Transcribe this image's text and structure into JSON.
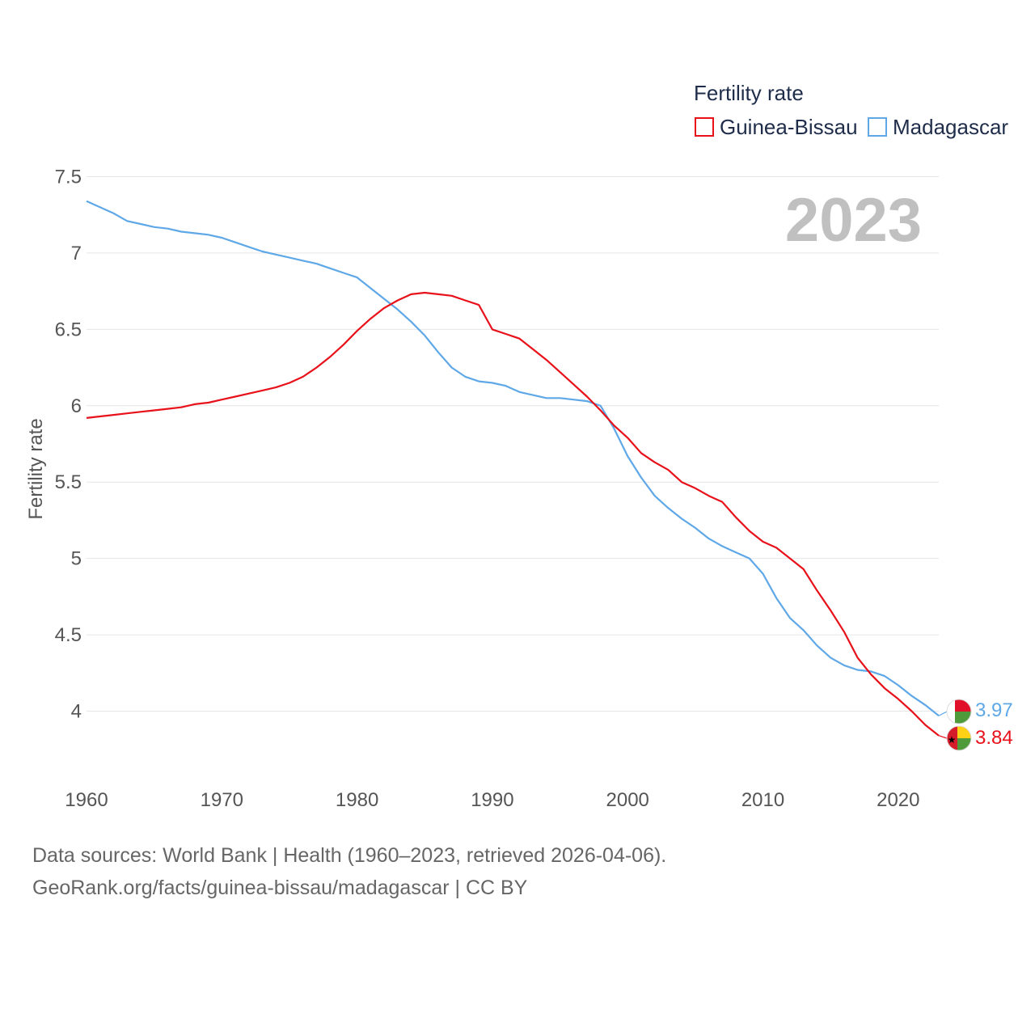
{
  "chart_data": {
    "type": "line",
    "title": "Fertility rate",
    "ylabel": "Fertility rate",
    "xlabel": "",
    "year_label": "2023",
    "xlim": [
      1960,
      2023
    ],
    "ylim": [
      3.7,
      7.5
    ],
    "x_ticks": [
      "1960",
      "1970",
      "1980",
      "1990",
      "2000",
      "2010",
      "2020"
    ],
    "y_ticks": [
      "4",
      "4.5",
      "5",
      "5.5",
      "6",
      "6.5",
      "7",
      "7.5"
    ],
    "legend_position": "top-right",
    "x": [
      1960,
      1961,
      1962,
      1963,
      1964,
      1965,
      1966,
      1967,
      1968,
      1969,
      1970,
      1971,
      1972,
      1973,
      1974,
      1975,
      1976,
      1977,
      1978,
      1979,
      1980,
      1981,
      1982,
      1983,
      1984,
      1985,
      1986,
      1987,
      1988,
      1989,
      1990,
      1991,
      1992,
      1993,
      1994,
      1995,
      1996,
      1997,
      1998,
      1999,
      2000,
      2001,
      2002,
      2003,
      2004,
      2005,
      2006,
      2007,
      2008,
      2009,
      2010,
      2011,
      2012,
      2013,
      2014,
      2015,
      2016,
      2017,
      2018,
      2019,
      2020,
      2021,
      2022,
      2023
    ],
    "series": [
      {
        "name": "Guinea-Bissau",
        "color": "#e8111a",
        "end_label": "3.84",
        "values": [
          5.92,
          5.93,
          5.94,
          5.95,
          5.96,
          5.97,
          5.98,
          5.99,
          6.01,
          6.02,
          6.04,
          6.06,
          6.08,
          6.1,
          6.12,
          6.15,
          6.19,
          6.25,
          6.32,
          6.4,
          6.49,
          6.57,
          6.64,
          6.69,
          6.73,
          6.74,
          6.73,
          6.72,
          6.69,
          6.66,
          6.5,
          6.47,
          6.44,
          6.37,
          6.3,
          6.22,
          6.14,
          6.06,
          5.97,
          5.87,
          5.79,
          5.69,
          5.63,
          5.58,
          5.5,
          5.46,
          5.41,
          5.37,
          5.27,
          5.18,
          5.11,
          5.07,
          5.0,
          4.93,
          4.79,
          4.66,
          4.52,
          4.35,
          4.24,
          4.15,
          4.08,
          4.0,
          3.91,
          3.84
        ]
      },
      {
        "name": "Madagascar",
        "color": "#5fa8e8",
        "end_label": "3.97",
        "values": [
          7.34,
          7.3,
          7.26,
          7.21,
          7.19,
          7.17,
          7.16,
          7.14,
          7.13,
          7.12,
          7.1,
          7.07,
          7.04,
          7.01,
          6.99,
          6.97,
          6.95,
          6.93,
          6.9,
          6.87,
          6.84,
          6.77,
          6.7,
          6.63,
          6.55,
          6.46,
          6.35,
          6.25,
          6.19,
          6.16,
          6.15,
          6.13,
          6.09,
          6.07,
          6.05,
          6.05,
          6.04,
          6.03,
          6.0,
          5.85,
          5.67,
          5.53,
          5.41,
          5.33,
          5.26,
          5.2,
          5.13,
          5.08,
          5.04,
          5.0,
          4.9,
          4.74,
          4.61,
          4.53,
          4.43,
          4.35,
          4.3,
          4.27,
          4.26,
          4.23,
          4.17,
          4.1,
          4.04,
          3.97
        ]
      }
    ]
  },
  "footer": {
    "sources": "Data sources: World Bank | Health (1960–2023, retrieved 2026-04-06).",
    "credit": "GeoRank.org/facts/guinea-bissau/madagascar | CC BY"
  }
}
